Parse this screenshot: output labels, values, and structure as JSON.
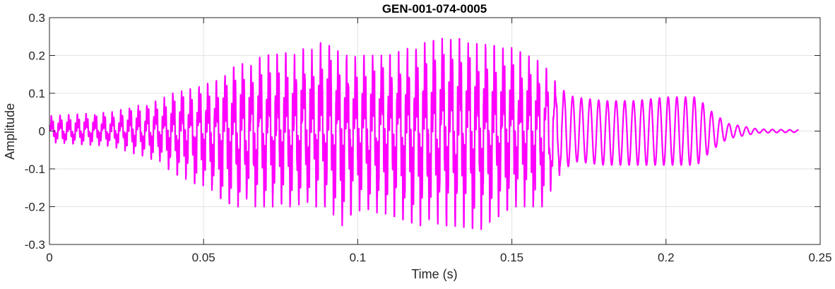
{
  "chart_data": {
    "type": "line",
    "title": "GEN-001-074-0005",
    "xlabel": "Time (s)",
    "ylabel": "Amplitude",
    "xlim": [
      0,
      0.25
    ],
    "ylim": [
      -0.3,
      0.3
    ],
    "xticks": [
      0,
      0.05,
      0.1,
      0.15,
      0.2,
      0.25
    ],
    "xtick_labels": [
      "0",
      "0.05",
      "0.1",
      "0.15",
      "0.2",
      "0.25"
    ],
    "yticks": [
      -0.3,
      -0.2,
      -0.1,
      0,
      0.1,
      0.2,
      0.3
    ],
    "ytick_labels": [
      "-0.3",
      "-0.2",
      "-0.1",
      "0",
      "0.1",
      "0.2",
      "0.3"
    ],
    "grid": true,
    "line_color": "#FF00FF",
    "series": [
      {
        "envelope_time": [
          0,
          0.02,
          0.035,
          0.04,
          0.05,
          0.06,
          0.07,
          0.08,
          0.09,
          0.095,
          0.1,
          0.11,
          0.12,
          0.13,
          0.14,
          0.15,
          0.16,
          0.165,
          0.17,
          0.18,
          0.19,
          0.2,
          0.21,
          0.215,
          0.22,
          0.23,
          0.243
        ],
        "envelope_upper": [
          0.04,
          0.05,
          0.08,
          0.1,
          0.12,
          0.17,
          0.2,
          0.21,
          0.24,
          0.2,
          0.2,
          0.2,
          0.23,
          0.25,
          0.23,
          0.22,
          0.18,
          0.12,
          0.09,
          0.08,
          0.08,
          0.09,
          0.09,
          0.05,
          0.02,
          0.005,
          0.003
        ],
        "envelope_lower": [
          -0.03,
          -0.04,
          -0.08,
          -0.11,
          -0.15,
          -0.2,
          -0.2,
          -0.2,
          -0.2,
          -0.25,
          -0.21,
          -0.22,
          -0.25,
          -0.25,
          -0.26,
          -0.2,
          -0.2,
          -0.12,
          -0.08,
          -0.09,
          -0.09,
          -0.09,
          -0.09,
          -0.05,
          -0.02,
          -0.005,
          -0.003
        ],
        "fundamental_hz": 355
      }
    ]
  }
}
